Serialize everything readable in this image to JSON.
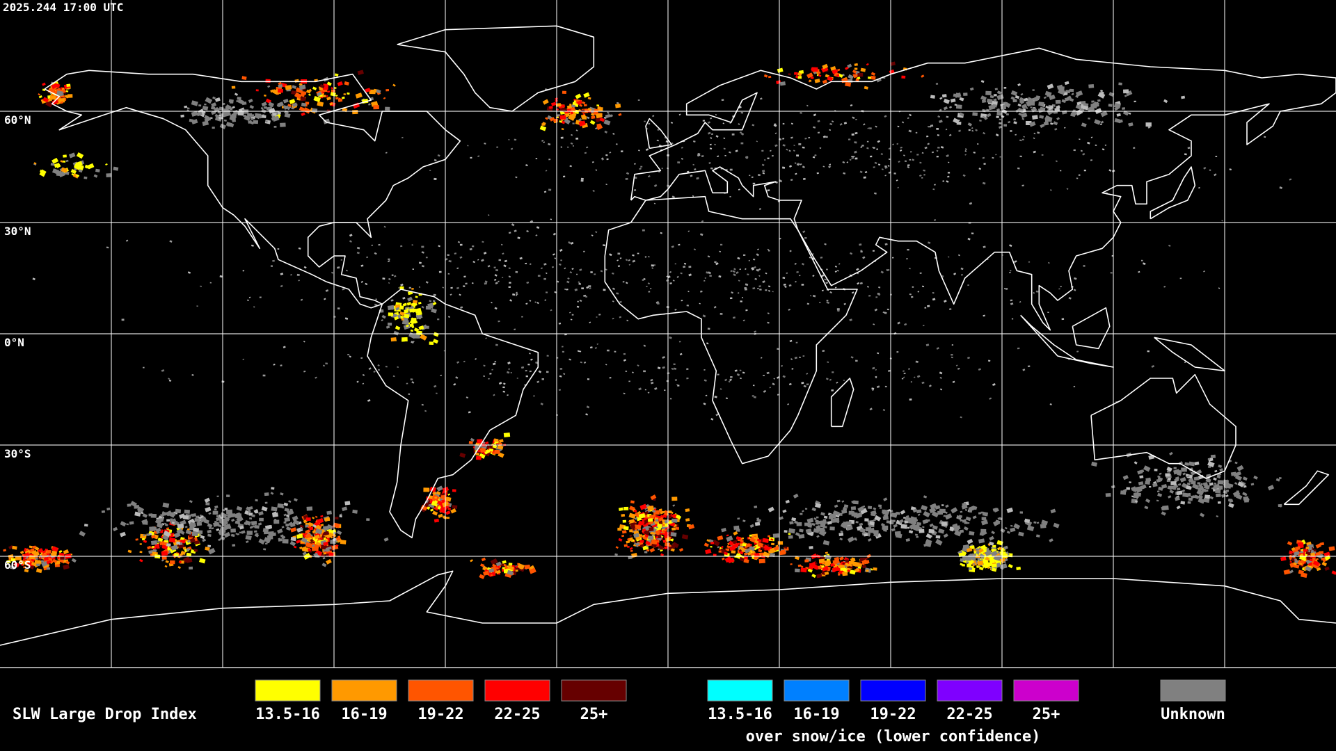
{
  "header": {
    "timestamp": "2025.244 17:00 UTC"
  },
  "map": {
    "latitude_labels": [
      "60°N",
      "30°N",
      "0°N",
      "30°S",
      "60°S"
    ]
  },
  "legend": {
    "title": "SLW Large Drop Index",
    "groups": [
      {
        "items": [
          {
            "label": "13.5-16",
            "color": "#ffff00"
          },
          {
            "label": "16-19",
            "color": "#ff9900"
          },
          {
            "label": "19-22",
            "color": "#ff5500"
          },
          {
            "label": "22-25",
            "color": "#ff0000"
          },
          {
            "label": "25+",
            "color": "#660000"
          }
        ]
      },
      {
        "items": [
          {
            "label": "13.5-16",
            "color": "#00ffff"
          },
          {
            "label": "16-19",
            "color": "#0080ff"
          },
          {
            "label": "19-22",
            "color": "#0000ff"
          },
          {
            "label": "22-25",
            "color": "#7f00ff"
          },
          {
            "label": "25+",
            "color": "#cc00cc"
          }
        ],
        "caption": "over snow/ice (lower confidence)"
      },
      {
        "items": [
          {
            "label": "Unknown",
            "color": "#808080"
          }
        ]
      }
    ]
  }
}
